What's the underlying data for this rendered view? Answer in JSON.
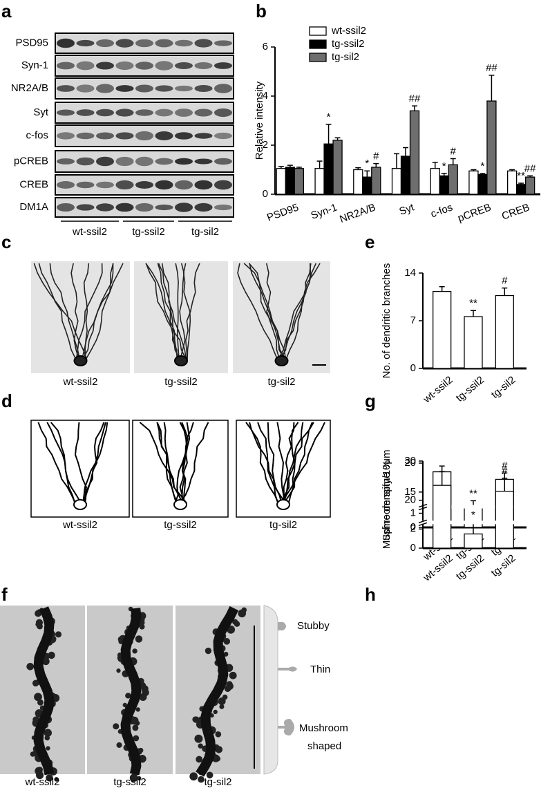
{
  "panel_labels": [
    "a",
    "b",
    "c",
    "d",
    "e",
    "f",
    "g",
    "h"
  ],
  "blot": {
    "rows": [
      "PSD95",
      "Syn-1",
      "NR2A/B",
      "Syt",
      "c-fos",
      "pCREB",
      "CREB",
      "DM1A"
    ],
    "groups": [
      "wt-ssil2",
      "tg-ssil2",
      "tg-sil2"
    ]
  },
  "images_c": {
    "labels": [
      "wt-ssil2",
      "tg-ssil2",
      "tg-sil2"
    ]
  },
  "tracings_d": {
    "labels": [
      "wt-ssil2",
      "tg-ssil2",
      "tg-sil2"
    ]
  },
  "images_f": {
    "labels": [
      "wt-ssil2",
      "tg-ssil2",
      "tg-sil2"
    ],
    "spine_types": [
      "Stubby",
      "Thin",
      "Mushroom",
      "shaped"
    ]
  },
  "chart_data": [
    {
      "type": "bar",
      "ylabel": "Relative intensity",
      "categories": [
        "PSD95",
        "Syn-1",
        "NR2A/B",
        "Syt",
        "c-fos",
        "pCREB",
        "CREB"
      ],
      "series": [
        {
          "name": "wt-ssil2",
          "color": "#ffffff",
          "values": [
            1.05,
            1.05,
            1.0,
            1.05,
            1.05,
            0.95,
            0.95
          ],
          "errors": [
            0.08,
            0.3,
            0.08,
            0.6,
            0.25,
            0.05,
            0.05
          ],
          "annotations": [
            null,
            null,
            null,
            null,
            null,
            null,
            null
          ]
        },
        {
          "name": "tg-ssil2",
          "color": "#000000",
          "values": [
            1.1,
            2.05,
            0.7,
            1.55,
            0.75,
            0.8,
            0.4
          ],
          "errors": [
            0.08,
            0.8,
            0.25,
            0.35,
            0.1,
            0.05,
            0.05
          ],
          "annotations": [
            null,
            "*",
            "*",
            null,
            "*",
            "*",
            "**"
          ]
        },
        {
          "name": "tg-sil2",
          "color": "#6e6e6e",
          "values": [
            1.05,
            2.2,
            1.1,
            3.4,
            1.2,
            3.8,
            0.7
          ],
          "errors": [
            0.05,
            0.1,
            0.15,
            0.2,
            0.25,
            1.05,
            0.05
          ],
          "annotations": [
            null,
            null,
            "#",
            "##",
            "#",
            "##",
            "##"
          ]
        }
      ],
      "ylim": [
        0,
        6
      ],
      "yticks": [
        0,
        2,
        4,
        6
      ],
      "legend": "upper left"
    },
    {
      "type": "bar",
      "ylabel": "No. of dendritic branches",
      "categories": [
        "wt-ssil2",
        "tg-ssil2",
        "tg-sil2"
      ],
      "series": [
        {
          "color": "#ffffff",
          "values": [
            11.3,
            7.6,
            10.7
          ],
          "errors": [
            0.7,
            0.9,
            1.1
          ],
          "annotations": [
            null,
            "**",
            "#"
          ]
        }
      ],
      "ylim": [
        0,
        14
      ],
      "yticks": [
        0,
        7,
        14
      ]
    },
    {
      "type": "bar",
      "ylabel": "Spine density/10μm",
      "categories": [
        "wt-ssil2",
        "tg-ssil2",
        "tg-sil2"
      ],
      "series": [
        {
          "color": "#ffffff",
          "values": [
            18.5,
            12.3,
            17.2
          ],
          "errors": [
            1.0,
            1.2,
            1.1
          ],
          "annotations": [
            null,
            "**",
            "#"
          ]
        }
      ],
      "ylim": [
        0,
        20
      ],
      "yticks": [
        0,
        1,
        15,
        20
      ],
      "broken_axis": true
    },
    {
      "type": "bar",
      "ylabel": "Mushroom spine %",
      "categories": [
        "wt-ssil2",
        "tg-ssil2",
        "tg-sil2"
      ],
      "series": [
        {
          "color": "#ffffff",
          "values": [
            23.8,
            11.4,
            22.3
          ],
          "errors": [
            3.5,
            3.0,
            3.3
          ],
          "annotations": [
            null,
            "*",
            "#"
          ]
        }
      ],
      "ylim": [
        0,
        30
      ],
      "yticks": [
        0,
        2,
        20,
        30
      ],
      "broken_axis": true
    }
  ]
}
